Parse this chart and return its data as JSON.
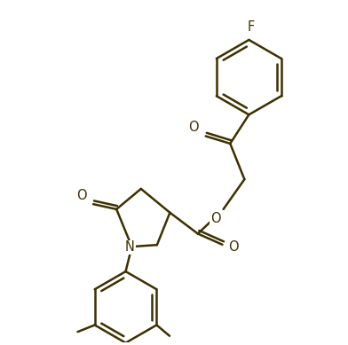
{
  "bg_color": "#ffffff",
  "line_color": "#3d3000",
  "line_width": 1.8,
  "font_size": 10.5,
  "figsize": [
    3.92,
    3.89
  ],
  "dpi": 100,
  "xlim": [
    0,
    10
  ],
  "ylim": [
    0,
    10
  ]
}
